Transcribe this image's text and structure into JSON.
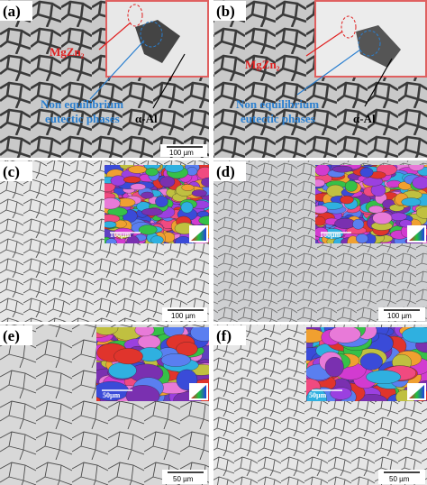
{
  "panels": [
    {
      "label": "(a)",
      "scale_bar": "100 µm",
      "mgzn": "MgZn₂",
      "phase_line1": "Non equilibrium",
      "phase_line2": "eutectic phases",
      "alpha": "α-Al"
    },
    {
      "label": "(b)",
      "mgzn": "MgZn₂",
      "phase_line1": "Non equilibrium",
      "phase_line2": "eutectic phases",
      "alpha": "α-Al"
    },
    {
      "label": "(c)",
      "scale_bar": "100 µm",
      "inset_scale_bar": "100µm"
    },
    {
      "label": "(d)",
      "scale_bar": "100 µm",
      "inset_scale_bar": "100µm"
    },
    {
      "label": "(e)",
      "scale_bar": "50 µm",
      "inset_scale_bar": "50µm"
    },
    {
      "label": "(f)",
      "scale_bar": "50 µm",
      "inset_scale_bar": "50µm"
    }
  ]
}
